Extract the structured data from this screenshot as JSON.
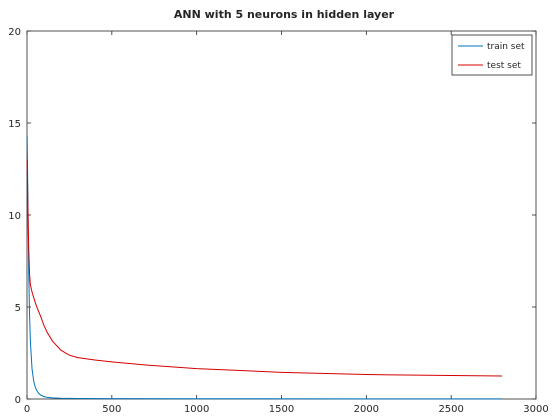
{
  "chart_data": {
    "type": "line",
    "title": "ANN with 5 neurons in hidden layer",
    "xlabel": "",
    "ylabel": "",
    "xlim": [
      0,
      3000
    ],
    "ylim": [
      0,
      20
    ],
    "xticks": [
      0,
      500,
      1000,
      1500,
      2000,
      2500,
      3000
    ],
    "yticks": [
      0,
      5,
      10,
      15,
      20
    ],
    "grid": false,
    "legend_position": "top-right",
    "series": [
      {
        "name": "train set",
        "color": "#0072bd",
        "x": [
          1,
          5,
          10,
          15,
          20,
          30,
          40,
          50,
          60,
          70,
          80,
          100,
          120,
          150,
          200,
          300,
          500,
          1000,
          2000,
          2800
        ],
        "y": [
          14.3,
          11.0,
          7.0,
          4.6,
          3.1,
          1.6,
          0.95,
          0.6,
          0.42,
          0.3,
          0.22,
          0.13,
          0.09,
          0.06,
          0.04,
          0.03,
          0.02,
          0.015,
          0.01,
          0.01
        ]
      },
      {
        "name": "test set",
        "color": "#d40000",
        "x": [
          1,
          5,
          10,
          15,
          20,
          30,
          40,
          50,
          60,
          80,
          100,
          120,
          150,
          200,
          250,
          300,
          400,
          500,
          700,
          1000,
          1500,
          2000,
          2500,
          2800
        ],
        "y": [
          13.0,
          10.5,
          8.2,
          6.8,
          6.2,
          5.8,
          5.5,
          5.2,
          4.95,
          4.5,
          4.0,
          3.6,
          3.15,
          2.65,
          2.38,
          2.25,
          2.12,
          2.02,
          1.85,
          1.65,
          1.45,
          1.33,
          1.28,
          1.25
        ]
      }
    ]
  }
}
